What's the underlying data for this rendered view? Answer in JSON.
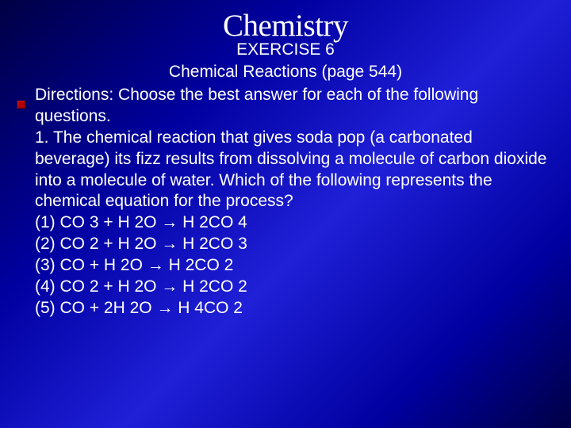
{
  "slide": {
    "title": "Chemistry",
    "exercise_line": "EXERCISE 6",
    "subtitle": "Chemical Reactions (page 544)",
    "directions": "Directions: Choose the best answer for each of the following questions.",
    "question_number_text": "1.   The chemical reaction that gives soda pop (a carbonated beverage) its fizz results from dissolving a molecule of carbon dioxide into a molecule of water. Which of the following represents the chemical equation for the process?",
    "options": [
      "(1) CO 3 + H 2O → H 2CO 4",
      "(2) CO 2 + H 2O → H 2CO 3",
      "(3) CO + H 2O → H 2CO 2",
      "(4) CO 2 + H 2O → H 2CO 2",
      "(5) CO + 2H 2O → H 4CO 2"
    ],
    "colors": {
      "background_gradient_start": "#000044",
      "background_gradient_mid": "#2020d8",
      "background_gradient_end": "#000044",
      "text_color": "#ffffff",
      "bullet_color": "#b00000"
    },
    "typography": {
      "title_font": "Georgia serif",
      "title_size_pt": 30,
      "body_font": "Arial sans-serif",
      "body_size_pt": 16
    }
  }
}
